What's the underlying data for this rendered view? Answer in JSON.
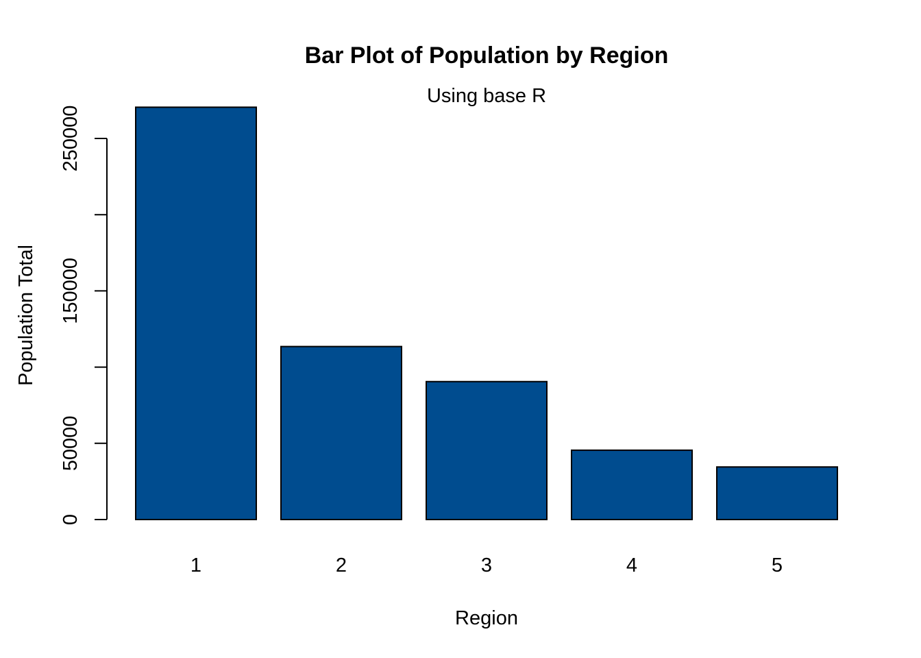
{
  "chart_data": {
    "type": "bar",
    "title": "Bar Plot of Population by Region",
    "subtitle": "Using base R",
    "xlabel": "Region",
    "ylabel": "Population Total",
    "categories": [
      "1",
      "2",
      "3",
      "4",
      "5"
    ],
    "values": [
      270500,
      113500,
      90500,
      45500,
      34500
    ],
    "ylim": [
      0,
      250000
    ],
    "yticks": [
      0,
      50000,
      100000,
      150000,
      200000,
      250000
    ],
    "ytick_labels": [
      "0",
      "50000",
      "",
      "150000",
      "",
      "250000"
    ],
    "bar_color": "#004C8F",
    "grid": false
  }
}
